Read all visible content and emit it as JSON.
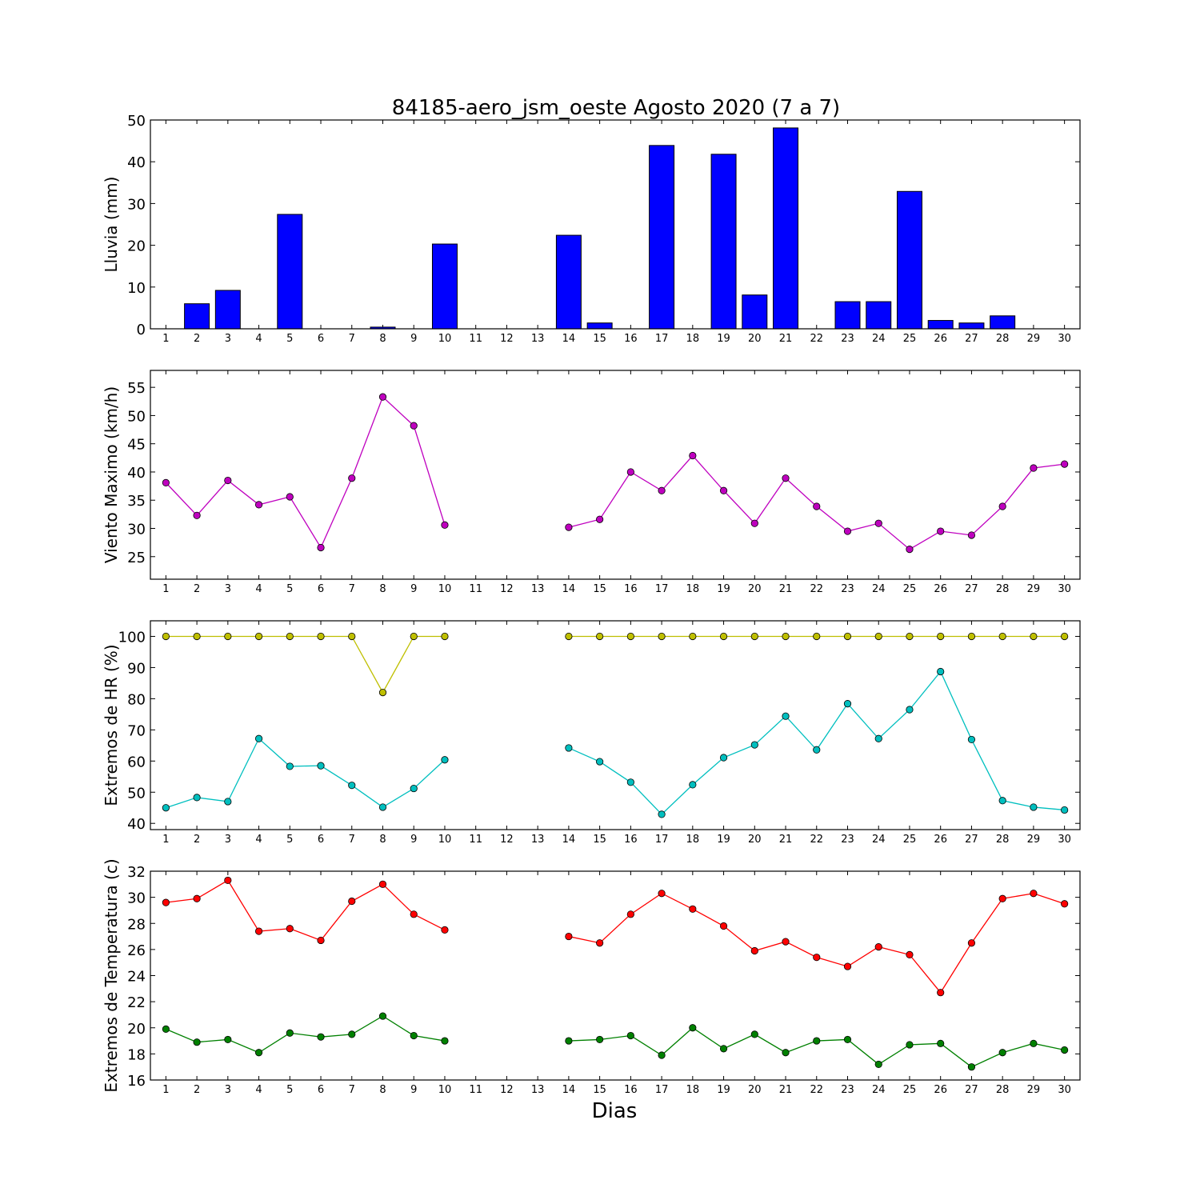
{
  "chart_data": {
    "title": "84185-aero_jsm_oeste Agosto 2020  (7 a 7)",
    "xlabel": "Dias",
    "days": [
      1,
      2,
      3,
      4,
      5,
      6,
      7,
      8,
      9,
      10,
      11,
      12,
      13,
      14,
      15,
      16,
      17,
      18,
      19,
      20,
      21,
      22,
      23,
      24,
      25,
      26,
      27,
      28,
      29,
      30
    ],
    "panels": [
      {
        "type": "bar",
        "ylabel": "Lluvia (mm)",
        "ylim": [
          0,
          50
        ],
        "yticks": [
          0,
          10,
          20,
          30,
          40,
          50
        ],
        "series": [
          {
            "color": "#0000ff",
            "values": [
              0,
              6,
              9.2,
              0,
              27.4,
              0,
              0,
              0.4,
              0,
              20.3,
              0,
              0,
              0,
              22.4,
              1.4,
              0,
              43.9,
              0,
              41.8,
              8.1,
              48.1,
              0,
              6.5,
              6.5,
              32.9,
              2,
              1.4,
              3.1,
              0,
              0
            ]
          }
        ]
      },
      {
        "type": "line",
        "ylabel": "Viento Maximo (km/h)",
        "ylim": [
          21,
          58
        ],
        "yticks": [
          25,
          30,
          35,
          40,
          45,
          50,
          55
        ],
        "series": [
          {
            "color": "#bf00bf",
            "values": [
              38.1,
              32.3,
              38.5,
              34.2,
              35.6,
              26.6,
              38.9,
              53.3,
              48.2,
              30.6,
              null,
              null,
              null,
              30.2,
              31.6,
              40,
              36.7,
              42.9,
              36.7,
              30.9,
              38.9,
              33.9,
              29.5,
              30.9,
              26.3,
              29.5,
              28.8,
              33.9,
              40.7,
              41.4
            ]
          }
        ]
      },
      {
        "type": "line",
        "ylabel": "Extremos de HR (%)",
        "ylim": [
          38,
          105
        ],
        "yticks": [
          40,
          50,
          60,
          70,
          80,
          90,
          100
        ],
        "series": [
          {
            "color": "#bfbf00",
            "values": [
              100,
              100,
              100,
              100,
              100,
              100,
              100,
              82,
              100,
              100,
              null,
              null,
              null,
              100,
              100,
              100,
              100,
              100,
              100,
              100,
              100,
              100,
              100,
              100,
              100,
              100,
              100,
              100,
              100,
              100
            ]
          },
          {
            "color": "#00bfbf",
            "values": [
              45,
              48.3,
              47,
              67.2,
              58.3,
              58.5,
              52.2,
              45.2,
              51.2,
              60.4,
              null,
              null,
              null,
              64.2,
              59.8,
              53.2,
              42.9,
              52.4,
              61.1,
              65.2,
              74.4,
              63.6,
              78.4,
              67.2,
              76.5,
              88.7,
              66.9,
              47.3,
              45.2,
              44.3
            ]
          }
        ]
      },
      {
        "type": "line",
        "ylabel": "Extremos de Temperatura (c)",
        "ylim": [
          16,
          32
        ],
        "yticks": [
          16,
          18,
          20,
          22,
          24,
          26,
          28,
          30,
          32
        ],
        "series": [
          {
            "color": "#ff0000",
            "values": [
              29.6,
              29.9,
              31.3,
              27.4,
              27.6,
              26.7,
              29.7,
              31,
              28.7,
              27.5,
              null,
              null,
              null,
              27,
              26.5,
              28.7,
              30.3,
              29.1,
              27.8,
              25.9,
              26.6,
              25.4,
              24.7,
              26.2,
              25.6,
              22.7,
              26.5,
              29.9,
              30.3,
              29.5
            ]
          },
          {
            "color": "#008000",
            "values": [
              19.9,
              18.9,
              19.1,
              18.1,
              19.6,
              19.3,
              19.5,
              20.9,
              19.4,
              19,
              null,
              null,
              null,
              19,
              19.1,
              19.4,
              17.9,
              20,
              18.4,
              19.5,
              18.1,
              19,
              19.1,
              17.2,
              18.7,
              18.8,
              17,
              18.1,
              18.8,
              18.3
            ]
          }
        ]
      }
    ]
  }
}
